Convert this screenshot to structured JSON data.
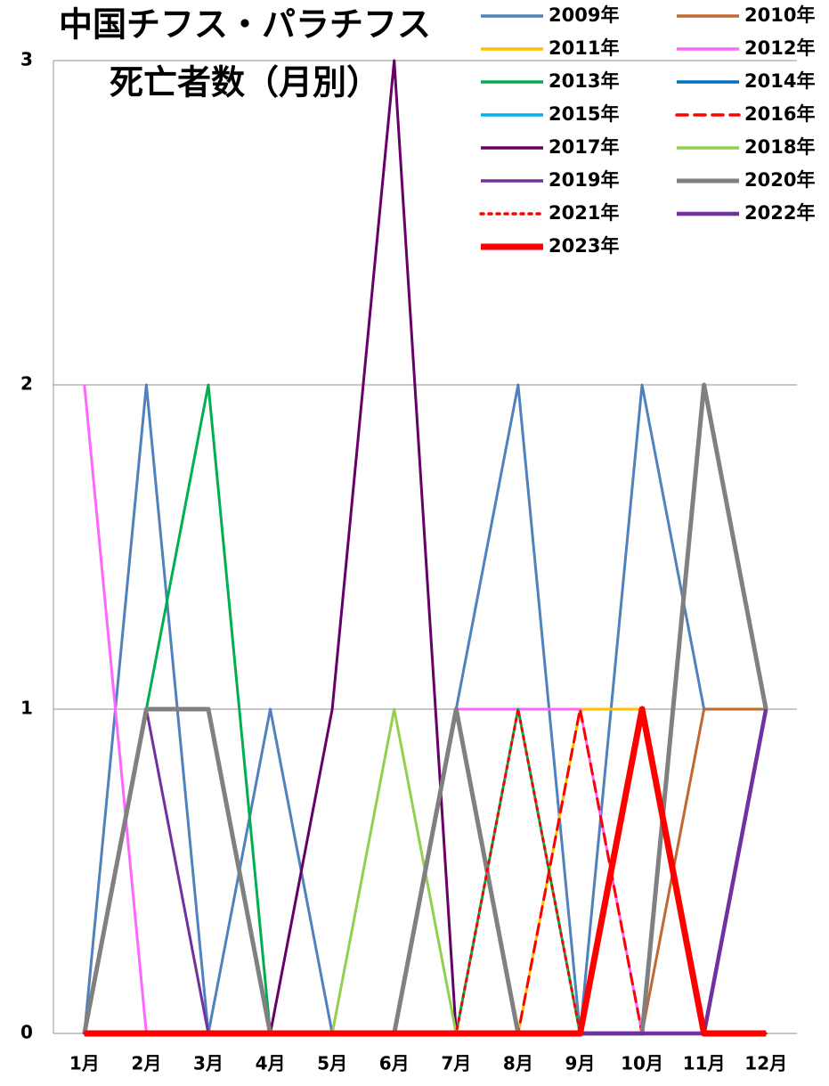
{
  "chart_data": {
    "type": "line",
    "title": [
      "中国チフス・パラチフス",
      "死亡者数（月別）"
    ],
    "categories": [
      "1月",
      "2月",
      "3月",
      "4月",
      "5月",
      "6月",
      "7月",
      "8月",
      "9月",
      "10月",
      "11月",
      "12月"
    ],
    "ylim": [
      0,
      3
    ],
    "yticks": [
      0,
      1,
      2,
      3
    ],
    "grid": true,
    "series": [
      {
        "name": "2009年",
        "color": "#4f81bd",
        "values": [
          0,
          2,
          0,
          1,
          0,
          0,
          1,
          2,
          0,
          2,
          1,
          1
        ]
      },
      {
        "name": "2010年",
        "color": "#c0682f",
        "values": [
          0,
          0,
          0,
          0,
          0,
          0,
          0,
          0,
          0,
          0,
          1,
          1
        ]
      },
      {
        "name": "2011年",
        "color": "#ffc000",
        "values": [
          0,
          0,
          0,
          0,
          0,
          0,
          0,
          0,
          1,
          1,
          0,
          0
        ]
      },
      {
        "name": "2012年",
        "color": "#ff66ff",
        "values": [
          2,
          0,
          0,
          0,
          0,
          0,
          1,
          1,
          1,
          0,
          0,
          0
        ]
      },
      {
        "name": "2013年",
        "color": "#00b050",
        "values": [
          0,
          1,
          2,
          0,
          0,
          0,
          0,
          1,
          0,
          0,
          0,
          0
        ]
      },
      {
        "name": "2014年",
        "color": "#0070c0",
        "values": [
          0,
          0,
          0,
          0,
          0,
          0,
          0,
          0,
          0,
          0,
          0,
          0
        ]
      },
      {
        "name": "2015年",
        "color": "#00b0f0",
        "values": [
          0,
          0,
          0,
          0,
          0,
          0,
          0,
          0,
          0,
          0,
          0,
          0
        ]
      },
      {
        "name": "2016年",
        "color": "#ff0000",
        "style": "dashed",
        "values": [
          0,
          0,
          0,
          0,
          0,
          0,
          0,
          0,
          1,
          0,
          0,
          0
        ]
      },
      {
        "name": "2017年",
        "color": "#660066",
        "values": [
          0,
          0,
          0,
          0,
          1,
          3,
          0,
          0,
          0,
          0,
          0,
          0
        ]
      },
      {
        "name": "2018年",
        "color": "#92d050",
        "values": [
          0,
          0,
          0,
          0,
          0,
          1,
          0,
          0,
          0,
          0,
          0,
          0
        ]
      },
      {
        "name": "2019年",
        "color": "#7030a0",
        "values": [
          0,
          1,
          0,
          0,
          0,
          0,
          0,
          0,
          0,
          0,
          0,
          0
        ]
      },
      {
        "name": "2020年",
        "color": "#808080",
        "values": [
          0,
          1,
          1,
          0,
          0,
          0,
          1,
          0,
          0,
          0,
          2,
          1
        ]
      },
      {
        "name": "2021年",
        "color": "#ff0000",
        "style": "dotted",
        "values": [
          0,
          0,
          0,
          0,
          0,
          0,
          0,
          1,
          0,
          0,
          0,
          0
        ]
      },
      {
        "name": "2022年",
        "color": "#7030a0",
        "values": [
          0,
          0,
          0,
          0,
          0,
          0,
          0,
          0,
          0,
          0,
          0,
          1
        ]
      },
      {
        "name": "2023年",
        "color": "#ff0000",
        "values": [
          0,
          0,
          0,
          0,
          0,
          0,
          0,
          0,
          0,
          1,
          0,
          0
        ]
      }
    ]
  }
}
